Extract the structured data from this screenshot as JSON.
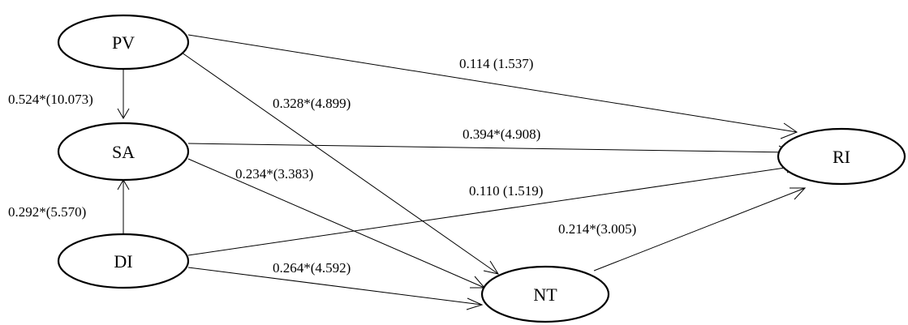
{
  "nodes": {
    "pv": {
      "label": "PV"
    },
    "sa": {
      "label": "SA"
    },
    "di": {
      "label": "DI"
    },
    "nt": {
      "label": "NT"
    },
    "ri": {
      "label": "RI"
    }
  },
  "edges": {
    "pv_sa": {
      "from": "PV",
      "to": "SA",
      "label": "0.524*(10.073)"
    },
    "di_sa": {
      "from": "DI",
      "to": "SA",
      "label": "0.292*(5.570)"
    },
    "pv_ri": {
      "from": "PV",
      "to": "RI",
      "label": "0.114 (1.537)"
    },
    "pv_nt": {
      "from": "PV",
      "to": "NT",
      "label": "0.328*(4.899)"
    },
    "sa_ri": {
      "from": "SA",
      "to": "RI",
      "label": "0.394*(4.908)"
    },
    "sa_nt": {
      "from": "SA",
      "to": "NT",
      "label": "0.234*(3.383)"
    },
    "di_ri": {
      "from": "DI",
      "to": "RI",
      "label": "0.110 (1.519)"
    },
    "di_nt": {
      "from": "DI",
      "to": "NT",
      "label": "0.264*(4.592)"
    },
    "nt_ri": {
      "from": "NT",
      "to": "RI",
      "label": "0.214*(3.005)"
    }
  },
  "colors": {
    "stroke": "#000000",
    "background": "#ffffff"
  }
}
